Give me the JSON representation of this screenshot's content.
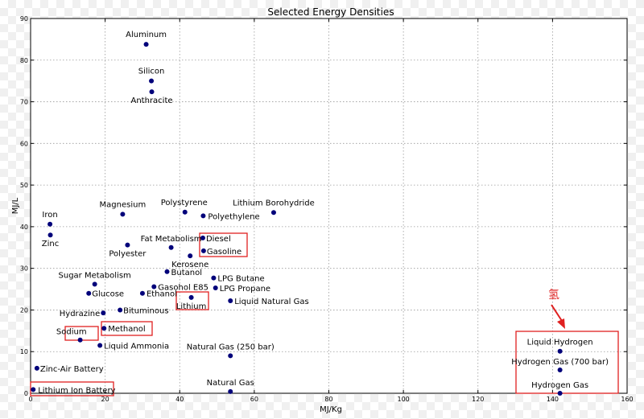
{
  "chart_data": {
    "type": "scatter",
    "title": "Selected Energy Densities",
    "xlabel": "MJ/Kg",
    "ylabel": "MJ/L",
    "xlim": [
      0,
      160
    ],
    "ylim": [
      0,
      90
    ],
    "xticks": [
      "0",
      "20",
      "40",
      "60",
      "80",
      "100",
      "120",
      "140",
      "160"
    ],
    "yticks": [
      "0",
      "10",
      "20",
      "30",
      "40",
      "50",
      "60",
      "70",
      "80",
      "90"
    ],
    "grid": true,
    "marker_color": "#00007a",
    "highlight_color": "#e02020",
    "annotation": {
      "text": "氢",
      "color": "#e02020"
    },
    "points": [
      {
        "name": "Aluminum",
        "x": 31.0,
        "y": 83.8,
        "label": "Aluminum",
        "anchor": "middle",
        "dx": 0,
        "dy": -9
      },
      {
        "name": "Silicon",
        "x": 32.4,
        "y": 75.0,
        "label": "Silicon",
        "anchor": "middle",
        "dx": 0,
        "dy": -9
      },
      {
        "name": "Anthracite",
        "x": 32.5,
        "y": 72.4,
        "label": "Anthracite",
        "anchor": "middle",
        "dx": 0,
        "dy": 14
      },
      {
        "name": "Magnesium",
        "x": 24.7,
        "y": 43.0,
        "label": "Magnesium",
        "anchor": "middle",
        "dx": 0,
        "dy": -9
      },
      {
        "name": "Polystyrene",
        "x": 41.4,
        "y": 43.5,
        "label": "Polystyrene",
        "anchor": "middle",
        "dx": -1,
        "dy": -9
      },
      {
        "name": "Polyethylene",
        "x": 46.3,
        "y": 42.6,
        "label": "Polyethylene",
        "anchor": "start",
        "dx": 6,
        "dy": 4
      },
      {
        "name": "Lithium Borohydride",
        "x": 65.2,
        "y": 43.4,
        "label": "Lithium Borohydride",
        "anchor": "middle",
        "dx": 0,
        "dy": -9
      },
      {
        "name": "Iron",
        "x": 5.2,
        "y": 40.6,
        "label": "Iron",
        "anchor": "middle",
        "dx": 0,
        "dy": -9
      },
      {
        "name": "Zinc",
        "x": 5.3,
        "y": 38.0,
        "label": "Zinc",
        "anchor": "middle",
        "dx": 0,
        "dy": 14
      },
      {
        "name": "Fat Metabolism",
        "x": 37.7,
        "y": 35.0,
        "label": "Fat Metabolism",
        "anchor": "middle",
        "dx": 0,
        "dy": -8
      },
      {
        "name": "Polyester",
        "x": 26.0,
        "y": 35.6,
        "label": "Polyester",
        "anchor": "middle",
        "dx": 0,
        "dy": 14
      },
      {
        "name": "Diesel",
        "x": 46.2,
        "y": 37.3,
        "label": "Diesel",
        "anchor": "start",
        "dx": 4,
        "dy": 4
      },
      {
        "name": "Gasoline",
        "x": 46.4,
        "y": 34.2,
        "label": "Gasoline",
        "anchor": "start",
        "dx": 4,
        "dy": 4
      },
      {
        "name": "Kerosene",
        "x": 42.8,
        "y": 33.0,
        "label": "Kerosene",
        "anchor": "middle",
        "dx": 0,
        "dy": 14
      },
      {
        "name": "Butanol",
        "x": 36.6,
        "y": 29.2,
        "label": "Butanol",
        "anchor": "start",
        "dx": 5,
        "dy": 4
      },
      {
        "name": "Sugar Metabolism",
        "x": 17.2,
        "y": 26.2,
        "label": "Sugar Metabolism",
        "anchor": "middle",
        "dx": 0,
        "dy": -8
      },
      {
        "name": "LPG Butane",
        "x": 49.1,
        "y": 27.7,
        "label": "LPG Butane",
        "anchor": "start",
        "dx": 5,
        "dy": 4
      },
      {
        "name": "Gasohol E85",
        "x": 33.1,
        "y": 25.6,
        "label": "Gasohol E85",
        "anchor": "start",
        "dx": 5,
        "dy": 4
      },
      {
        "name": "LPG Propane",
        "x": 49.6,
        "y": 25.3,
        "label": "LPG Propane",
        "anchor": "start",
        "dx": 5,
        "dy": 4
      },
      {
        "name": "Glucose",
        "x": 15.6,
        "y": 24.0,
        "label": "Glucose",
        "anchor": "start",
        "dx": 4,
        "dy": 4
      },
      {
        "name": "Ethanol",
        "x": 30.0,
        "y": 24.0,
        "label": "Ethanol",
        "anchor": "start",
        "dx": 5,
        "dy": 4
      },
      {
        "name": "Lithium",
        "x": 43.1,
        "y": 23.0,
        "label": "Lithium",
        "anchor": "middle",
        "dx": 0,
        "dy": 14
      },
      {
        "name": "Liquid Natural Gas",
        "x": 53.6,
        "y": 22.2,
        "label": "Liquid Natural Gas",
        "anchor": "start",
        "dx": 5,
        "dy": 4
      },
      {
        "name": "Bituminous",
        "x": 24.0,
        "y": 20.0,
        "label": "Bituminous",
        "anchor": "start",
        "dx": 4,
        "dy": 4
      },
      {
        "name": "Hydrazine",
        "x": 19.5,
        "y": 19.3,
        "label": "Hydrazine",
        "anchor": "end",
        "dx": -4,
        "dy": 4
      },
      {
        "name": "Methanol",
        "x": 19.7,
        "y": 15.6,
        "label": "Methanol",
        "anchor": "start",
        "dx": 5,
        "dy": 4
      },
      {
        "name": "Sodium",
        "x": 13.3,
        "y": 12.8,
        "label": "Sodium",
        "anchor": "end",
        "dx": 8,
        "dy": -7
      },
      {
        "name": "Liquid Ammonia",
        "x": 18.6,
        "y": 11.5,
        "label": "Liquid Ammonia",
        "anchor": "start",
        "dx": 5,
        "dy": 4
      },
      {
        "name": "Natural Gas (250 bar)",
        "x": 53.6,
        "y": 9.0,
        "label": "Natural Gas (250 bar)",
        "anchor": "middle",
        "dx": 0,
        "dy": -8
      },
      {
        "name": "Zinc-Air Battery",
        "x": 1.7,
        "y": 6.0,
        "label": "Zinc-Air Battery",
        "anchor": "start",
        "dx": 4,
        "dy": 4
      },
      {
        "name": "Lithium Ion Battery",
        "x": 0.7,
        "y": 0.9,
        "label": "Lithium Ion Battery",
        "anchor": "start",
        "dx": 6,
        "dy": 4
      },
      {
        "name": "Natural Gas",
        "x": 53.6,
        "y": 0.4,
        "label": "Natural Gas",
        "anchor": "middle",
        "dx": 0,
        "dy": -8
      },
      {
        "name": "Liquid Hydrogen",
        "x": 142.0,
        "y": 10.1,
        "label": "Liquid Hydrogen",
        "anchor": "middle",
        "dx": 0,
        "dy": -8
      },
      {
        "name": "Hydrogen Gas (700 bar)",
        "x": 142.0,
        "y": 5.6,
        "label": "Hydrogen Gas (700 bar)",
        "anchor": "middle",
        "dx": 0,
        "dy": -7
      },
      {
        "name": "Hydrogen Gas",
        "x": 142.0,
        "y": 0.0,
        "label": "Hydrogen Gas",
        "anchor": "middle",
        "dx": 0,
        "dy": -7
      }
    ]
  }
}
